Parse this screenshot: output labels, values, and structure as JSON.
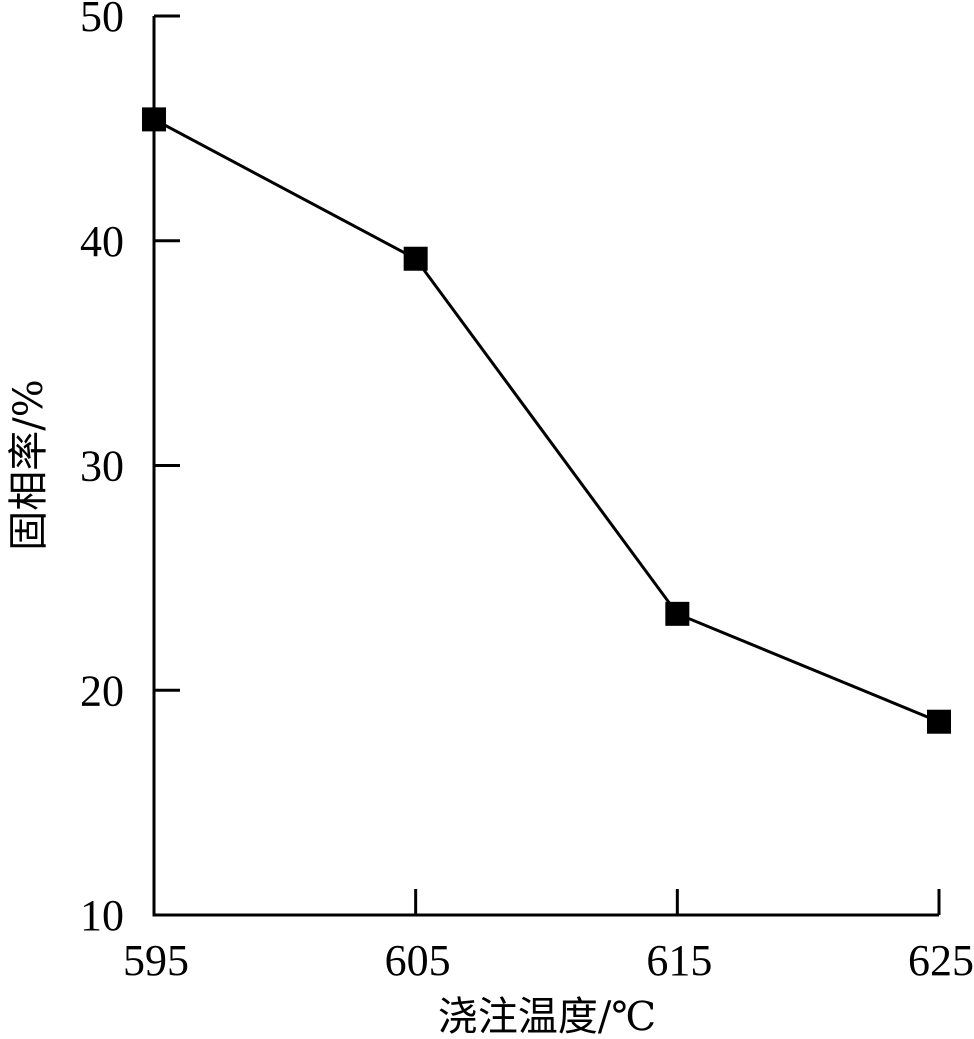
{
  "chart_data": {
    "type": "line",
    "title": "",
    "xlabel": "浇注温度/℃",
    "ylabel": "固相率/%",
    "x": [
      595,
      605,
      615,
      625
    ],
    "series": [
      {
        "values": [
          45.4,
          39.2,
          23.4,
          18.6
        ]
      }
    ],
    "xlim": [
      595,
      625
    ],
    "ylim": [
      10,
      50
    ],
    "xticks": [
      "595",
      "605",
      "615",
      "625"
    ],
    "yticks": [
      "10",
      "20",
      "30",
      "40",
      "50"
    ],
    "grid": false,
    "legend": "none",
    "marker": "square",
    "colors": {
      "line": "#000000",
      "marker": "#000000",
      "axis": "#000000"
    }
  }
}
